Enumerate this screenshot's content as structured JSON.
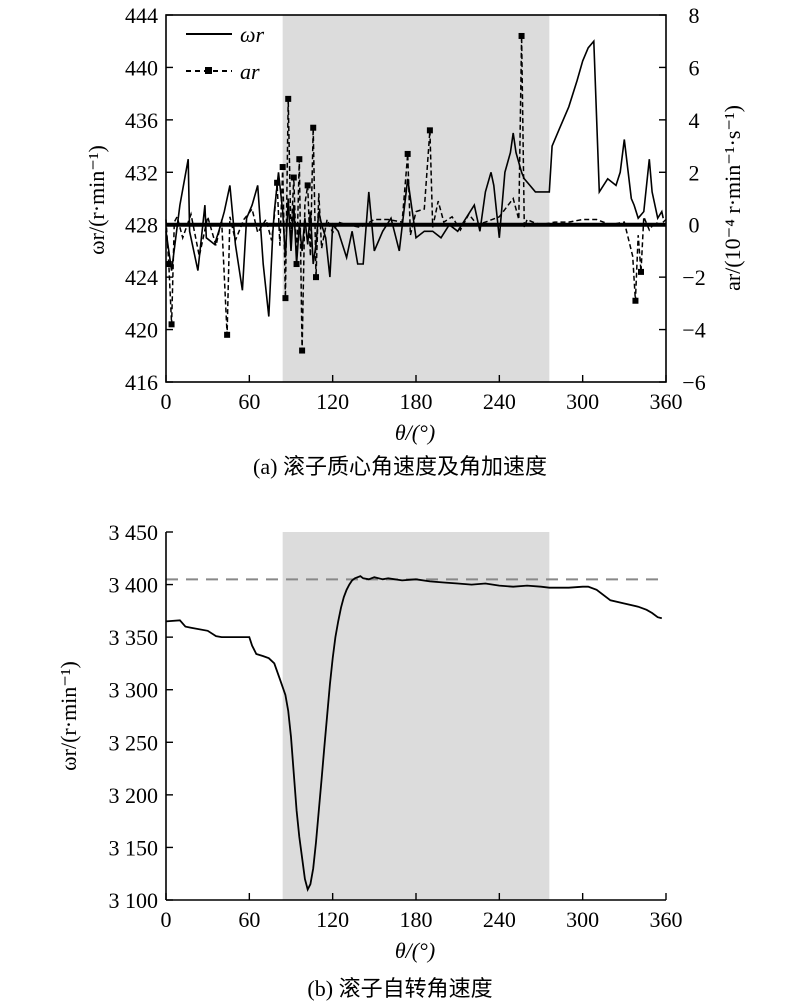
{
  "chart_data": [
    {
      "type": "line",
      "caption": "(a) 滚子质心角速度及角加速度",
      "xlabel": "θ/(°)",
      "ylabel_left": "ωr/(r·min⁻¹)",
      "ylabel_right": "ar/(10⁻⁴ r·min⁻¹·s⁻¹)",
      "xlim": [
        0,
        360
      ],
      "ylim_left": [
        416,
        444
      ],
      "ylim_right": [
        -6,
        8
      ],
      "x_ticks": [
        "0",
        "60",
        "120",
        "180",
        "240",
        "300",
        "360"
      ],
      "y_ticks_left": [
        "416",
        "420",
        "424",
        "428",
        "432",
        "436",
        "440",
        "444"
      ],
      "y_ticks_right": [
        "-6",
        "-4",
        "-2",
        "0",
        "2",
        "4",
        "6",
        "8"
      ],
      "shaded_region": [
        84,
        276
      ],
      "legend": {
        "placement": "top-left",
        "entries": [
          "ωr",
          "ar"
        ]
      },
      "series": [
        {
          "name": "ωr",
          "axis": "left",
          "style": "solid",
          "x": [
            0,
            4,
            10,
            16,
            17,
            23,
            28,
            29,
            35,
            38,
            42,
            46,
            50,
            55,
            58,
            62,
            66,
            70,
            74,
            77,
            78,
            81,
            84,
            86,
            88,
            90,
            92,
            94,
            96,
            98,
            100,
            102,
            104,
            106,
            108,
            110,
            112,
            115,
            118,
            120,
            124,
            130,
            134,
            138,
            142,
            146,
            150,
            156,
            162,
            168,
            174,
            180,
            186,
            192,
            198,
            204,
            210,
            216,
            222,
            226,
            230,
            234,
            236,
            240,
            244,
            248,
            250,
            252,
            256,
            258,
            262,
            266,
            270,
            274,
            276,
            278,
            284,
            290,
            296,
            300,
            304,
            308,
            312,
            318,
            324,
            327,
            330,
            335,
            337,
            340,
            344,
            348,
            350,
            354,
            357,
            358
          ],
          "y": [
            427.5,
            424.5,
            429.5,
            433,
            427.5,
            424.5,
            429.5,
            427,
            426.5,
            427.5,
            429,
            431,
            426.5,
            423,
            428.5,
            429.5,
            431,
            425,
            421,
            427.5,
            429,
            432,
            429,
            425.5,
            430,
            426,
            429.5,
            425,
            428,
            426,
            428.5,
            426.5,
            429,
            425,
            426.5,
            429,
            428,
            427,
            424,
            428,
            427.5,
            425.5,
            427.5,
            425,
            425,
            430.5,
            426,
            427.5,
            428.5,
            426,
            431.5,
            427,
            427.5,
            427.5,
            427,
            428,
            427.5,
            428.5,
            429.5,
            427.5,
            430.5,
            432,
            431,
            427,
            432,
            433.5,
            435,
            433.5,
            432,
            431.5,
            431,
            430.5,
            430.5,
            430.5,
            430.5,
            434,
            435.5,
            437,
            439,
            440.5,
            441.5,
            442,
            430.5,
            431.5,
            431,
            432,
            434.5,
            430,
            429.5,
            428.5,
            429,
            433,
            430.5,
            428.5,
            429,
            428.5
          ]
        },
        {
          "name": "ar",
          "axis": "right",
          "style": "dashed-square-markers",
          "x": [
            0,
            2,
            4,
            6,
            8,
            12,
            18,
            24,
            30,
            36,
            40,
            44,
            46,
            50,
            56,
            62,
            66,
            72,
            76,
            78,
            80,
            82,
            84,
            86,
            88,
            90,
            92,
            94,
            96,
            98,
            100,
            102,
            104,
            106,
            108,
            110,
            112,
            116,
            120,
            124,
            130,
            140,
            150,
            160,
            170,
            174,
            176,
            180,
            186,
            190,
            192,
            196,
            200,
            206,
            212,
            218,
            224,
            230,
            240,
            250,
            254,
            256,
            258,
            260,
            264,
            270,
            280,
            290,
            300,
            310,
            320,
            330,
            336,
            338,
            340,
            342,
            344,
            348,
            352,
            356,
            360
          ],
          "y": [
            0.2,
            -1.5,
            -3.8,
            0.1,
            0.3,
            -0.5,
            0.4,
            -1.2,
            0.3,
            -0.8,
            0.2,
            -4.2,
            0.3,
            -0.6,
            0.2,
            0.6,
            -0.3,
            0.2,
            -0.6,
            0.3,
            1.6,
            -0.8,
            2.2,
            -2.8,
            4.8,
            -0.5,
            1.8,
            -1.5,
            2.5,
            -4.8,
            0.8,
            1.5,
            -1.2,
            3.7,
            -2.0,
            1.2,
            -0.9,
            0.2,
            -0.3,
            0.1,
            0.0,
            -0.1,
            0.2,
            0.2,
            0.1,
            2.7,
            -0.4,
            0.5,
            0.6,
            3.6,
            -0.1,
            0.9,
            0.1,
            0.3,
            -0.2,
            0.4,
            0.0,
            0.1,
            0.3,
            1.0,
            0.2,
            7.2,
            -0.1,
            0.2,
            0.1,
            0.0,
            0.1,
            0.1,
            0.2,
            0.2,
            0.0,
            0.1,
            -1.2,
            -2.9,
            -0.4,
            -1.8,
            0.3,
            -0.2,
            0.1,
            0.0,
            0.2
          ]
        }
      ]
    },
    {
      "type": "line",
      "caption": "(b) 滚子自转角速度",
      "xlabel": "θ/(°)",
      "ylabel": "ωr/(r·min⁻¹)",
      "xlim": [
        0,
        360
      ],
      "ylim": [
        3100,
        3450
      ],
      "x_ticks": [
        "0",
        "60",
        "120",
        "180",
        "240",
        "300",
        "360"
      ],
      "y_ticks": [
        "3 100",
        "3 150",
        "3 200",
        "3 250",
        "3 300",
        "3 350",
        "3 400",
        "3 450"
      ],
      "shaded_region": [
        84,
        276
      ],
      "reference_line": {
        "y": 3405,
        "style": "dashed"
      },
      "series": [
        {
          "name": "ωr",
          "style": "solid",
          "x": [
            0,
            10,
            14,
            18,
            30,
            36,
            40,
            60,
            62,
            65,
            70,
            74,
            78,
            82,
            86,
            88,
            90,
            92,
            94,
            96,
            98,
            100,
            102,
            104,
            106,
            108,
            110,
            112,
            114,
            116,
            118,
            120,
            122,
            124,
            126,
            128,
            130,
            132,
            134,
            136,
            138,
            140,
            142,
            146,
            150,
            156,
            160,
            170,
            180,
            190,
            200,
            210,
            220,
            230,
            240,
            250,
            260,
            270,
            276,
            280,
            290,
            300,
            304,
            310,
            320,
            330,
            340,
            346,
            350,
            354,
            357
          ],
          "y": [
            3365,
            3366,
            3360,
            3359,
            3356,
            3351,
            3350,
            3350,
            3342,
            3334,
            3332,
            3330,
            3325,
            3310,
            3295,
            3280,
            3255,
            3220,
            3185,
            3160,
            3140,
            3120,
            3110,
            3115,
            3130,
            3155,
            3185,
            3215,
            3245,
            3275,
            3305,
            3330,
            3350,
            3365,
            3378,
            3388,
            3395,
            3400,
            3404,
            3406,
            3407,
            3408,
            3406,
            3405,
            3407,
            3405,
            3406,
            3404,
            3405,
            3403,
            3402,
            3401,
            3400,
            3401,
            3399,
            3398,
            3399,
            3398,
            3397,
            3397,
            3397,
            3398,
            3398,
            3395,
            3385,
            3382,
            3379,
            3376,
            3373,
            3369,
            3368
          ]
        }
      ]
    }
  ]
}
